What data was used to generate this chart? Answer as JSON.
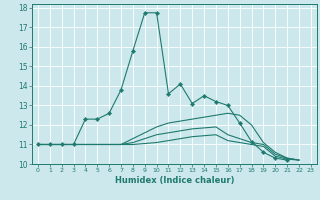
{
  "xlabel": "Humidex (Indice chaleur)",
  "xlim": [
    -0.5,
    23.5
  ],
  "ylim": [
    10,
    18.2
  ],
  "yticks": [
    10,
    11,
    12,
    13,
    14,
    15,
    16,
    17,
    18
  ],
  "xticks": [
    0,
    1,
    2,
    3,
    4,
    5,
    6,
    7,
    8,
    9,
    10,
    11,
    12,
    13,
    14,
    15,
    16,
    17,
    18,
    19,
    20,
    21,
    22,
    23
  ],
  "bg_color": "#cde8ec",
  "grid_color": "#b8d8dc",
  "line_color": "#1e7a6e",
  "lines": [
    {
      "x": [
        0,
        1,
        2,
        3,
        4,
        5,
        6,
        7,
        8,
        9,
        10,
        11,
        12,
        13,
        14,
        15,
        16,
        17,
        18,
        19,
        20,
        21,
        22
      ],
      "y": [
        11,
        11,
        11,
        11,
        12.3,
        12.3,
        12.6,
        13.8,
        15.8,
        17.75,
        17.75,
        13.6,
        14.1,
        13.1,
        13.5,
        13.2,
        13.0,
        12.1,
        11.15,
        10.6,
        10.3,
        10.2,
        null
      ],
      "marker": "D",
      "markersize": 2.2
    },
    {
      "x": [
        0,
        1,
        2,
        3,
        4,
        5,
        6,
        7,
        8,
        9,
        10,
        11,
        12,
        13,
        14,
        15,
        16,
        17,
        18,
        19,
        20,
        21,
        22
      ],
      "y": [
        11,
        11,
        11,
        11,
        11,
        11,
        11,
        11,
        11.3,
        11.6,
        11.9,
        12.1,
        12.2,
        12.3,
        12.4,
        12.5,
        12.6,
        12.5,
        12.0,
        11.1,
        10.6,
        10.3,
        10.2
      ],
      "marker": null,
      "markersize": 0
    },
    {
      "x": [
        0,
        1,
        2,
        3,
        4,
        5,
        6,
        7,
        8,
        9,
        10,
        11,
        12,
        13,
        14,
        15,
        16,
        17,
        18,
        19,
        20,
        21,
        22
      ],
      "y": [
        11,
        11,
        11,
        11,
        11,
        11,
        11,
        11,
        11.1,
        11.3,
        11.5,
        11.6,
        11.7,
        11.8,
        11.85,
        11.9,
        11.5,
        11.3,
        11.1,
        11.0,
        10.5,
        10.3,
        10.2
      ],
      "marker": null,
      "markersize": 0
    },
    {
      "x": [
        0,
        1,
        2,
        3,
        4,
        5,
        6,
        7,
        8,
        9,
        10,
        11,
        12,
        13,
        14,
        15,
        16,
        17,
        18,
        19,
        20,
        21,
        22
      ],
      "y": [
        11,
        11,
        11,
        11,
        11,
        11,
        11,
        11,
        11,
        11.05,
        11.1,
        11.2,
        11.3,
        11.4,
        11.45,
        11.5,
        11.2,
        11.1,
        11.0,
        10.9,
        10.4,
        10.25,
        10.2
      ],
      "marker": null,
      "markersize": 0
    }
  ]
}
